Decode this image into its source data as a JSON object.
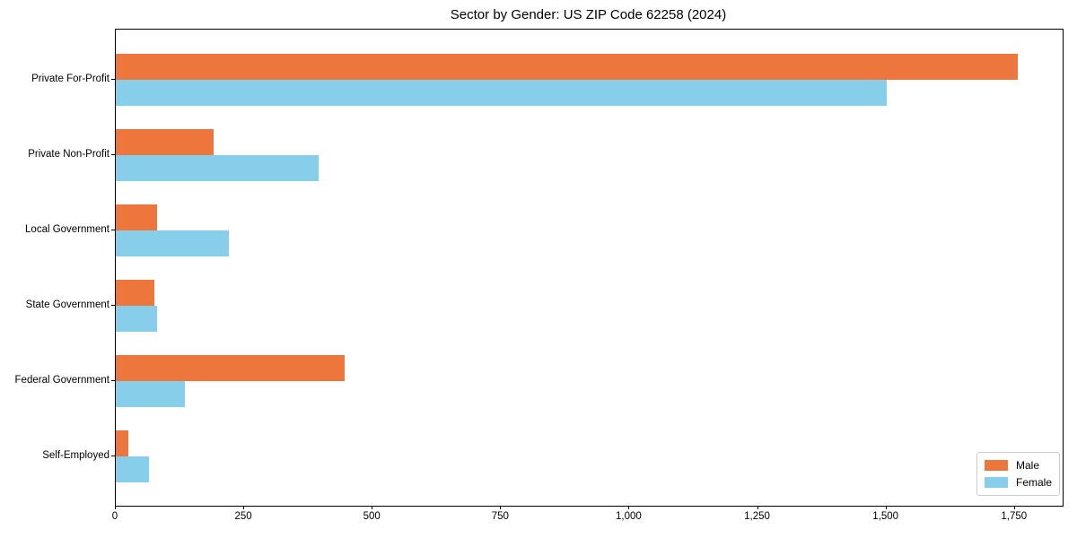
{
  "chart_data": {
    "type": "bar",
    "orientation": "horizontal",
    "title": "Sector by Gender: US ZIP Code 62258 (2024)",
    "categories": [
      "Private For-Profit",
      "Private Non-Profit",
      "Local Government",
      "State Government",
      "Federal Government",
      "Self-Employed"
    ],
    "series": [
      {
        "name": "Male",
        "color": "#EC763B",
        "values": [
          1755,
          190,
          80,
          75,
          445,
          25
        ]
      },
      {
        "name": "Female",
        "color": "#87CEEB",
        "values": [
          1500,
          395,
          220,
          80,
          135,
          65
        ]
      }
    ],
    "xlim": [
      0,
      1843
    ],
    "xticks": [
      0,
      250,
      500,
      750,
      1000,
      1250,
      1500,
      1750
    ],
    "xtick_labels": [
      "0",
      "250",
      "500",
      "750",
      "1,000",
      "1,250",
      "1,500",
      "1,750"
    ],
    "ylabel": "",
    "xlabel": "",
    "grid": false,
    "legend_position": "lower right",
    "legend": {
      "male_label": "Male",
      "female_label": "Female"
    }
  }
}
